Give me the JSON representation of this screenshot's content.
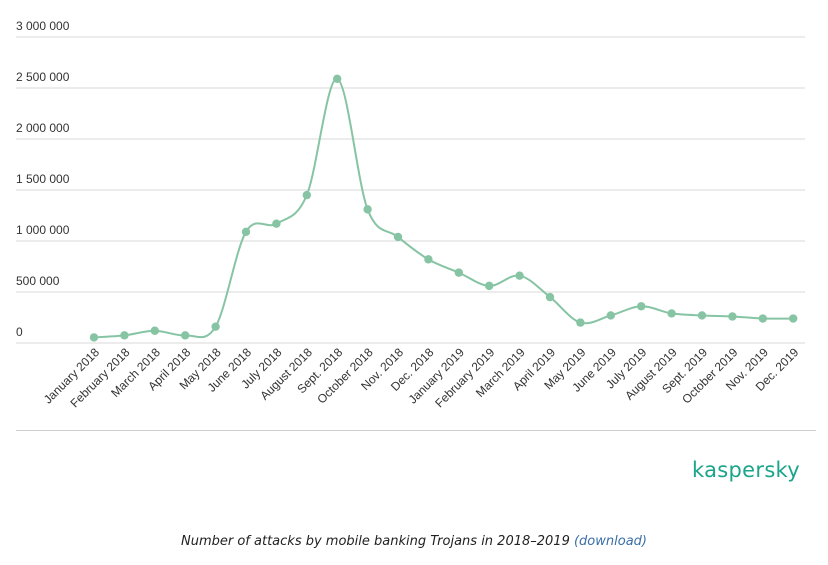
{
  "chart_data": {
    "type": "line",
    "title": "",
    "xlabel": "",
    "ylabel": "",
    "categories": [
      "January 2018",
      "February 2018",
      "March 2018",
      "April 2018",
      "May 2018",
      "June 2018",
      "July 2018",
      "August 2018",
      "Sept. 2018",
      "October 2018",
      "Nov. 2018",
      "Dec. 2018",
      "January 2019",
      "February 2019",
      "March 2019",
      "April 2019",
      "May 2019",
      "June 2019",
      "July 2019",
      "August 2019",
      "Sept. 2019",
      "October 2019",
      "Nov. 2019",
      "Dec. 2019"
    ],
    "series": [
      {
        "values": [
          55000,
          75000,
          120000,
          75000,
          160000,
          1090000,
          1170000,
          1450000,
          2590000,
          1310000,
          1040000,
          820000,
          690000,
          560000,
          660000,
          450000,
          200000,
          270000,
          360000,
          290000,
          270000,
          260000,
          240000,
          240000
        ]
      }
    ],
    "ylim": [
      0,
      3000000
    ],
    "yticks": [
      "0",
      "500 000",
      "1 000 000",
      "1 500 000",
      "2 000 000",
      "2 500 000",
      "3 000 000"
    ],
    "grid": true,
    "legend": "none",
    "line_color": "#86c4a4",
    "marker_color": "#86c4a4"
  },
  "logo": {
    "text": "kaspersky",
    "color": "#1aa58a"
  },
  "caption": {
    "text": "Number of attacks by mobile banking Trojans in 2018–2019 ",
    "link": "(download)"
  }
}
